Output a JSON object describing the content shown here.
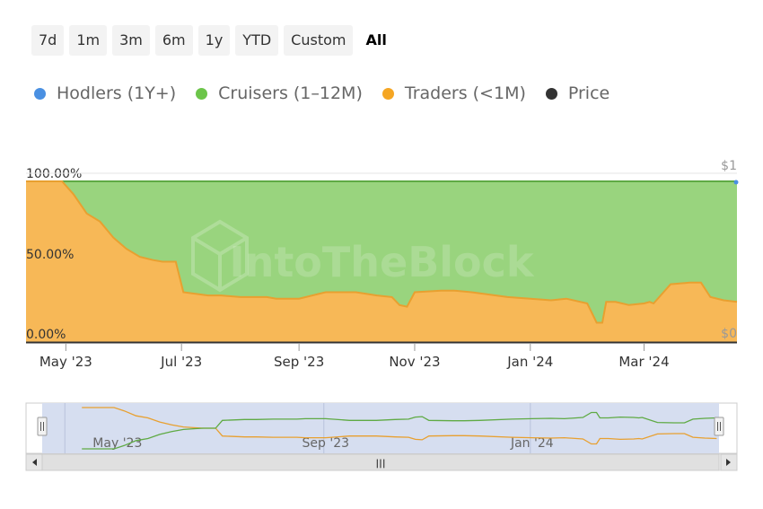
{
  "range_selector": {
    "buttons": [
      "7d",
      "1m",
      "3m",
      "6m",
      "1y",
      "YTD",
      "Custom",
      "All"
    ],
    "active": "All"
  },
  "legend": [
    {
      "label": "Hodlers (1Y+)",
      "color": "#4a90e2",
      "icon": "circle-dot-icon"
    },
    {
      "label": "Cruisers (1–12M)",
      "color": "#6cc54a",
      "icon": "circle-dot-icon"
    },
    {
      "label": "Traders (<1M)",
      "color": "#f5a623",
      "icon": "circle-dot-icon"
    },
    {
      "label": "Price",
      "color": "#333333",
      "icon": "circle-dot-icon"
    }
  ],
  "watermark": "IntoTheBlock",
  "colors": {
    "hodlers": "#4a90e2",
    "cruisers_fill": "#99d47e",
    "cruisers_line": "#5faa44",
    "traders_fill": "#f7b857",
    "traders_line": "#e8a030",
    "navigator_bg": "#d6def0"
  },
  "chart_data": {
    "type": "area",
    "stacked": true,
    "x_range": [
      "2023-04-10",
      "2024-04-19"
    ],
    "x_tick_labels": [
      "May '23",
      "Jul '23",
      "Sep '23",
      "Nov '23",
      "Jan '24",
      "Mar '24"
    ],
    "x_tick_dates": [
      "2023-05-01",
      "2023-07-01",
      "2023-09-01",
      "2023-11-01",
      "2024-01-01",
      "2024-03-01"
    ],
    "y_left_ticks": [
      "100.00%",
      "50.00%",
      "0.00%"
    ],
    "y_left_range": [
      0,
      100
    ],
    "y_right_ticks": [
      "$1",
      "$0"
    ],
    "y_right_range": [
      0,
      1
    ],
    "grid": false,
    "legend_position": "top-left",
    "series": [
      {
        "name": "Hodlers (1Y+)",
        "values_description": "near 0% throughout"
      },
      {
        "name": "Traders (<1M)",
        "x": [
          "2023-04-10",
          "2023-04-25",
          "2023-04-29",
          "2023-05-05",
          "2023-05-12",
          "2023-05-19",
          "2023-05-26",
          "2023-06-02",
          "2023-06-09",
          "2023-06-16",
          "2023-06-21",
          "2023-06-25",
          "2023-06-28",
          "2023-07-02",
          "2023-07-15",
          "2023-07-22",
          "2023-08-01",
          "2023-08-15",
          "2023-08-20",
          "2023-09-01",
          "2023-09-15",
          "2023-10-01",
          "2023-10-12",
          "2023-10-20",
          "2023-10-24",
          "2023-10-28",
          "2023-11-01",
          "2023-11-15",
          "2023-11-22",
          "2023-12-01",
          "2023-12-20",
          "2024-01-01",
          "2024-01-12",
          "2024-01-20",
          "2024-01-31",
          "2024-02-05",
          "2024-02-08",
          "2024-02-10",
          "2024-02-15",
          "2024-02-22",
          "2024-03-01",
          "2024-03-04",
          "2024-03-06",
          "2024-03-15",
          "2024-03-25",
          "2024-03-31",
          "2024-04-05",
          "2024-04-12",
          "2024-04-19"
        ],
        "y": [
          100,
          100,
          100,
          92,
          80,
          75,
          65,
          58,
          53,
          51,
          50,
          50,
          50,
          31,
          29,
          29,
          28,
          28,
          27,
          27,
          31,
          31,
          29,
          28,
          23,
          22,
          31,
          32,
          32,
          31,
          28,
          27,
          26,
          27,
          24,
          12,
          12,
          25,
          25,
          23,
          24,
          25,
          24,
          36,
          37,
          37,
          28,
          26,
          25
        ]
      },
      {
        "name": "Cruisers (1–12M)",
        "values_description": "fills remainder up to 100%"
      },
      {
        "name": "Price",
        "values_description": "near $0 on right axis"
      }
    ]
  },
  "navigator": {
    "x_labels": [
      "May '23",
      "Sep '23",
      "Jan '24"
    ],
    "scroll_grip": "|||"
  }
}
